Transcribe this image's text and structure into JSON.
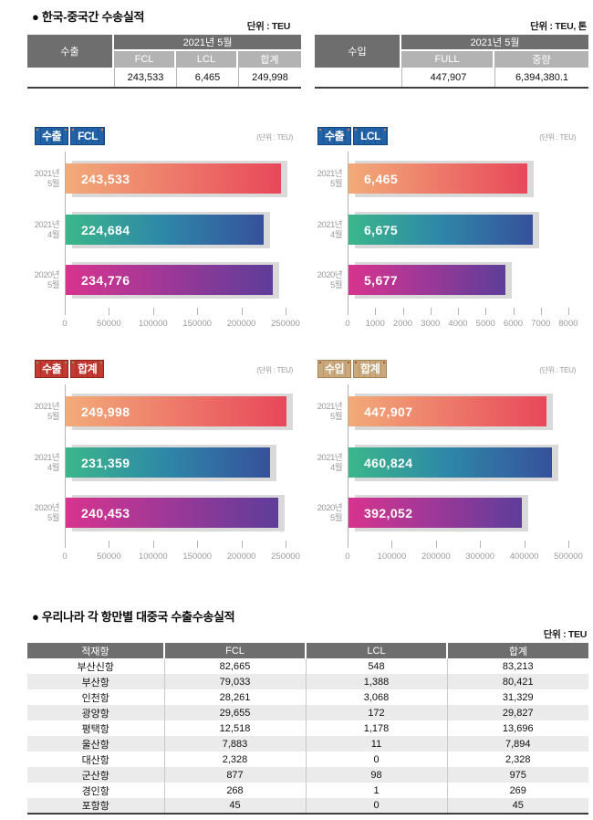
{
  "page": {
    "section1_title": "● 한국-중국간 수송실적",
    "section2_title": "● 우리나라 각 항만별 대중국 수출수송실적",
    "unit_teu": "단위 : TEU",
    "unit_teu_ton": "단위 : TEU, 톤"
  },
  "summary_tables": {
    "export": {
      "row_label": "수출",
      "period": "2021년 5월",
      "columns": [
        "FCL",
        "LCL",
        "합계"
      ],
      "values": [
        "243,533",
        "6,465",
        "249,998"
      ]
    },
    "import": {
      "row_label": "수입",
      "period": "2021년 5월",
      "columns": [
        "FULL",
        "중량"
      ],
      "values": [
        "447,907",
        "6,394,380.1"
      ]
    }
  },
  "chart_data": [
    {
      "type": "bar",
      "orientation": "horizontal",
      "title": "수출 FCL",
      "badge": [
        "수출",
        "FCL"
      ],
      "badge_style": "blue",
      "unit_note": "(단위 : TEU)",
      "categories": [
        [
          "2021년",
          "5월"
        ],
        [
          "2021년",
          "4월"
        ],
        [
          "2020년",
          "5월"
        ]
      ],
      "values": [
        243533,
        224684,
        234776
      ],
      "value_labels": [
        "243,533",
        "224,684",
        "234,776"
      ],
      "xlim": [
        0,
        250000
      ],
      "xticks": [
        0,
        50000,
        100000,
        150000,
        200000,
        250000
      ],
      "grid": false,
      "legend": false
    },
    {
      "type": "bar",
      "orientation": "horizontal",
      "title": "수출 LCL",
      "badge": [
        "수출",
        "LCL"
      ],
      "badge_style": "blue",
      "unit_note": "(단위 : TEU)",
      "categories": [
        [
          "2021년",
          "5월"
        ],
        [
          "2021년",
          "4월"
        ],
        [
          "2020년",
          "5월"
        ]
      ],
      "values": [
        6465,
        6675,
        5677
      ],
      "value_labels": [
        "6,465",
        "6,675",
        "5,677"
      ],
      "xlim": [
        0,
        8000
      ],
      "xticks": [
        0,
        1000,
        2000,
        3000,
        4000,
        5000,
        6000,
        7000,
        8000
      ],
      "grid": false,
      "legend": false
    },
    {
      "type": "bar",
      "orientation": "horizontal",
      "title": "수출 합계",
      "badge": [
        "수출",
        "합계"
      ],
      "badge_style": "red",
      "unit_note": "(단위 : TEU)",
      "categories": [
        [
          "2021년",
          "5월"
        ],
        [
          "2021년",
          "4월"
        ],
        [
          "2020년",
          "5월"
        ]
      ],
      "values": [
        249998,
        231359,
        240453
      ],
      "value_labels": [
        "249,998",
        "231,359",
        "240,453"
      ],
      "xlim": [
        0,
        250000
      ],
      "xticks": [
        0,
        50000,
        100000,
        150000,
        200000,
        250000
      ],
      "grid": false,
      "legend": false
    },
    {
      "type": "bar",
      "orientation": "horizontal",
      "title": "수입 합계",
      "badge": [
        "수입",
        "합계"
      ],
      "badge_style": "tan",
      "unit_note": "(단위 : TEU)",
      "categories": [
        [
          "2021년",
          "5월"
        ],
        [
          "2021년",
          "4월"
        ],
        [
          "2020년",
          "5월"
        ]
      ],
      "values": [
        447907,
        460824,
        392052
      ],
      "value_labels": [
        "447,907",
        "460,824",
        "392,052"
      ],
      "xlim": [
        0,
        500000
      ],
      "xticks": [
        0,
        100000,
        200000,
        300000,
        400000,
        500000
      ],
      "grid": false,
      "legend": false
    }
  ],
  "port_table": {
    "headers": [
      "적재항",
      "FCL",
      "LCL",
      "합계"
    ],
    "rows": [
      [
        "부산신항",
        "82,665",
        "548",
        "83,213"
      ],
      [
        "부산항",
        "79,033",
        "1,388",
        "80,421"
      ],
      [
        "인천항",
        "28,261",
        "3,068",
        "31,329"
      ],
      [
        "광양항",
        "29,655",
        "172",
        "29,827"
      ],
      [
        "평택항",
        "12,518",
        "1,178",
        "13,696"
      ],
      [
        "울산항",
        "7,883",
        "11",
        "7,894"
      ],
      [
        "대산항",
        "2,328",
        "0",
        "2,328"
      ],
      [
        "군산항",
        "877",
        "98",
        "975"
      ],
      [
        "경인항",
        "268",
        "1",
        "269"
      ],
      [
        "포항항",
        "45",
        "0",
        "45"
      ]
    ]
  },
  "colors": {
    "bar_gradients": [
      [
        "#f2ab79",
        "#e8485a"
      ],
      [
        "#3bb78b",
        "#2e86a8",
        "#36519b"
      ],
      [
        "#d7348e",
        "#9c3898",
        "#5e3d99"
      ]
    ],
    "bar_shadow": "#d9d9d9",
    "table_header_dark": "#6e6e6e",
    "table_header_mid": "#b3b3b3",
    "table_row_alt": "#ebebeb",
    "axis_gray": "#b3b3b3",
    "muted_text": "#9a9a9a",
    "badge_styles": {
      "blue": {
        "bg": "#2263a8",
        "ridge": "#1a5494",
        "border": "#14477f",
        "dot": "#e07a4a"
      },
      "red": {
        "bg": "#c23a31",
        "ridge": "#a92f27",
        "border": "#8e241d",
        "dot": "#7ba05a"
      },
      "tan": {
        "bg": "#c9a97e",
        "ridge": "#bb9769",
        "border": "#a58353",
        "dot": "#a0522d"
      }
    }
  }
}
